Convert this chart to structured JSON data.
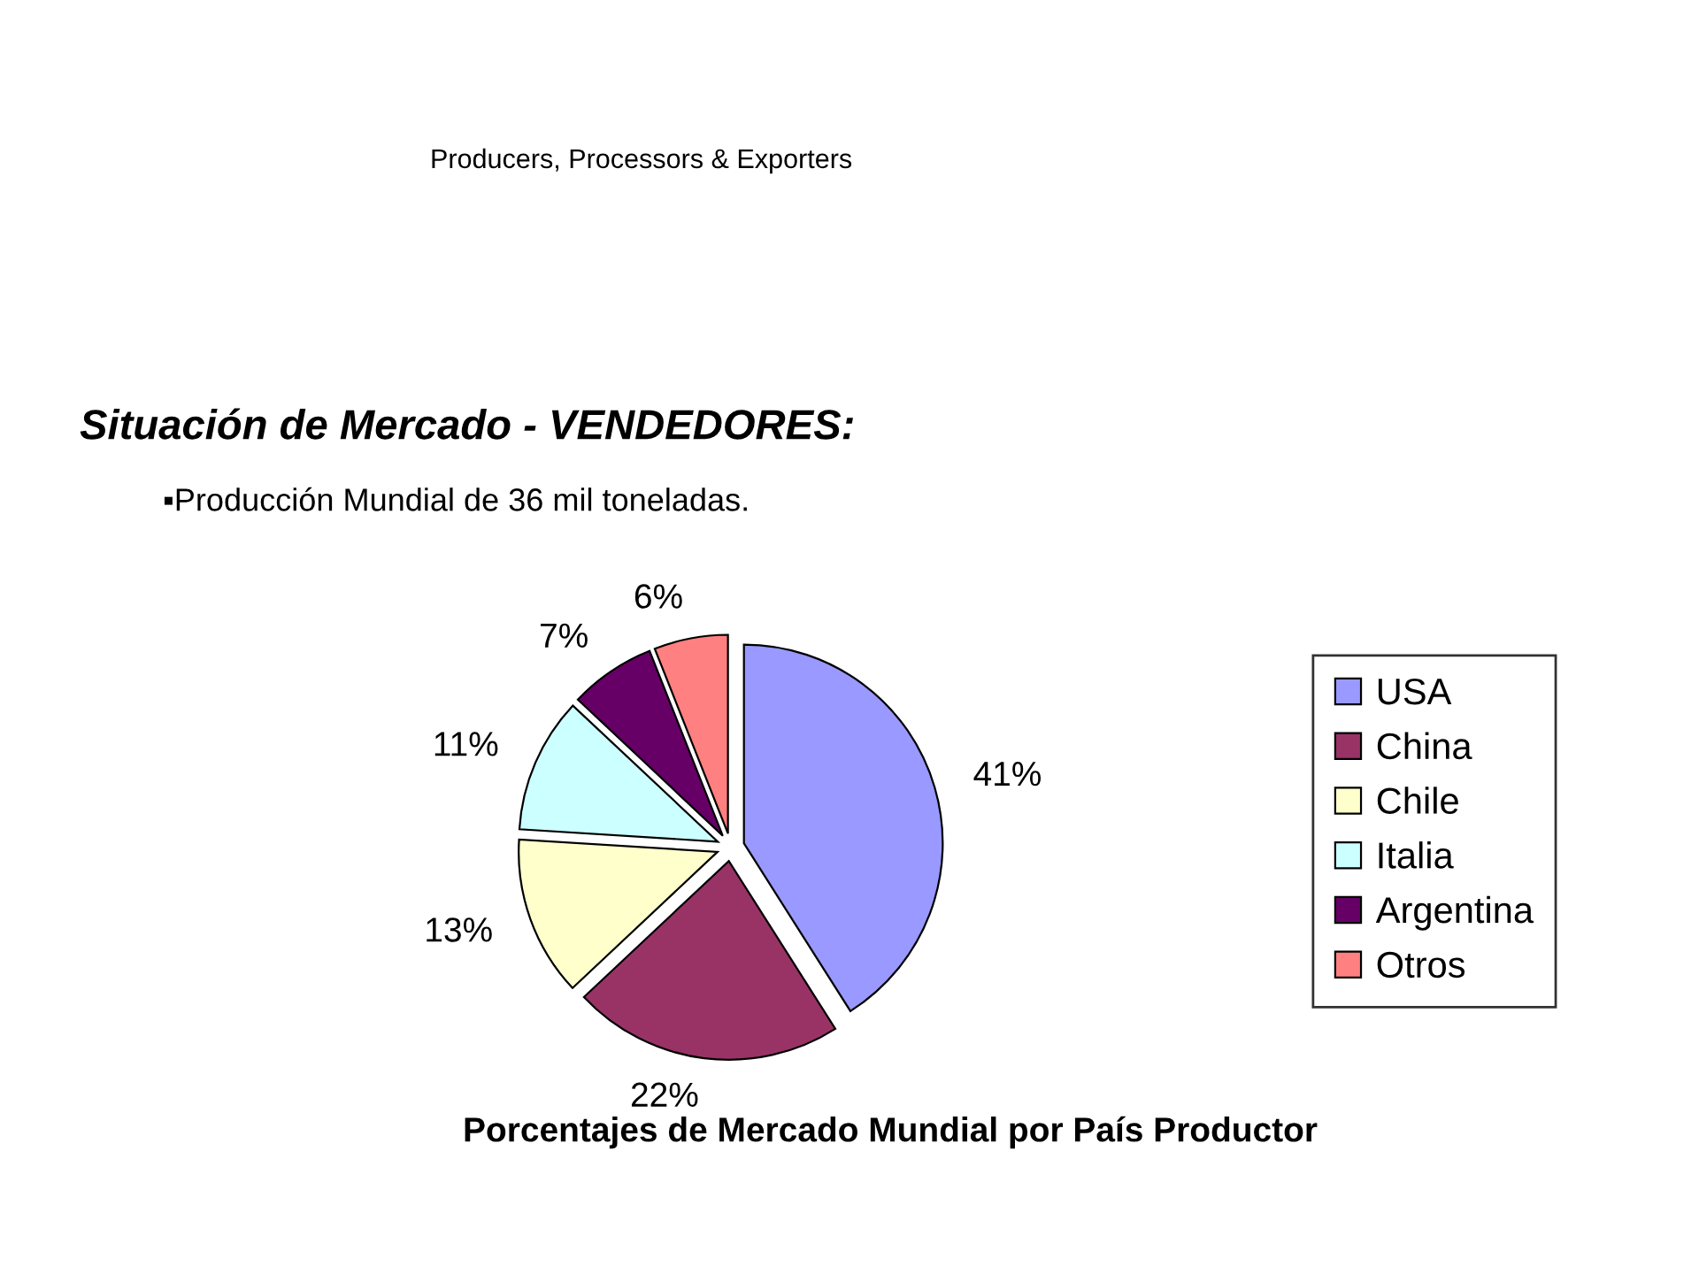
{
  "chart_data": {
    "type": "pie",
    "title": "Situación de Mercado - VENDEDORES:",
    "subtitle": "▪Producción Mundial de 36 mil toneladas.",
    "annotations": [
      "Producers, Processors & Exporters",
      "Porcentajes de Mercado Mundial por País Productor"
    ],
    "categories": [
      "USA",
      "China",
      "Chile",
      "Italia",
      "Argentina",
      "Otros"
    ],
    "values": [
      41,
      22,
      13,
      11,
      7,
      6
    ],
    "colors": [
      "#9999ff",
      "#993366",
      "#ffffcc",
      "#ccffff",
      "#660066",
      "#ff8080"
    ],
    "value_labels": [
      "41%",
      "22%",
      "13%",
      "11%",
      "7%",
      "6%"
    ],
    "legend": "right"
  }
}
